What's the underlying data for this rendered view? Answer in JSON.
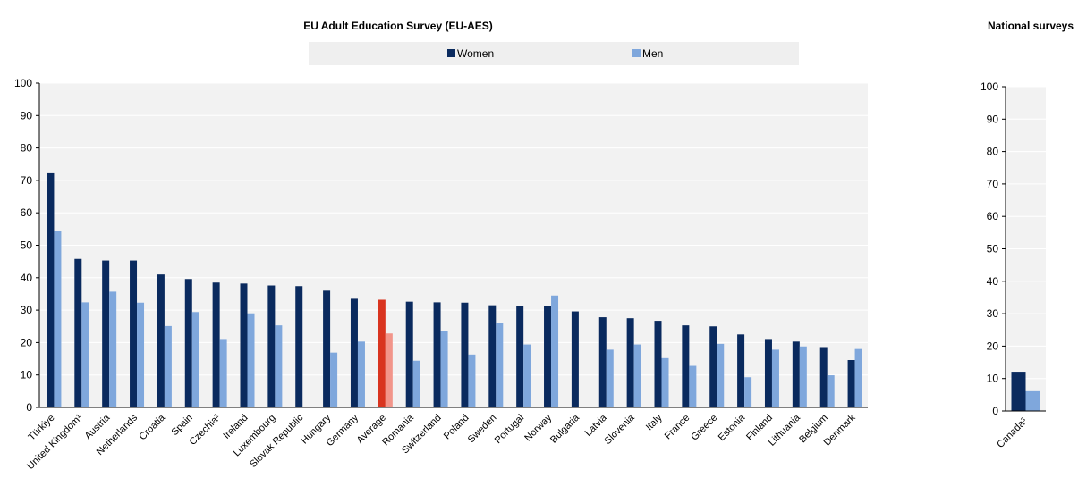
{
  "colors": {
    "women": "#0a2a5e",
    "men": "#7fa7dc",
    "avg_women": "#d9341f",
    "avg_men": "#f2958a",
    "legend_bg": "#efefef",
    "plot_bg": "#f2f2f2",
    "grid": "#ffffff",
    "axis": "#000000"
  },
  "chart_data": [
    {
      "type": "bar",
      "title": "EU Adult Education Survey (EU-AES)",
      "legend": [
        "Women",
        "Men"
      ],
      "legend_position": "top",
      "ylim": [
        0,
        100
      ],
      "yticks": [
        0,
        10,
        20,
        30,
        40,
        50,
        60,
        70,
        80,
        90,
        100
      ],
      "grid": true,
      "highlight_category": "Average",
      "categories": [
        "Türkiye",
        "United Kingdom¹",
        "Austria",
        "Netherlands",
        "Croatia",
        "Spain",
        "Czechia²",
        "Ireland",
        "Luxembourg",
        "Slovak Republic",
        "Hungary",
        "Germany",
        "Average",
        "Romania",
        "Switzerland",
        "Poland",
        "Sweden",
        "Portugal",
        "Norway",
        "Bulgaria",
        "Latvia",
        "Slovenia",
        "Italy",
        "France",
        "Greece",
        "Estonia",
        "Finland",
        "Lithuania",
        "Belgium",
        "Denmark"
      ],
      "series": [
        {
          "name": "Women",
          "values": [
            72.2,
            45.8,
            45.3,
            45.3,
            41.0,
            39.6,
            38.5,
            38.2,
            37.6,
            37.4,
            36.0,
            33.5,
            33.2,
            32.6,
            32.4,
            32.3,
            31.5,
            31.2,
            31.2,
            29.6,
            27.8,
            27.5,
            26.7,
            25.3,
            25.0,
            22.5,
            21.1,
            20.3,
            18.6,
            14.6
          ]
        },
        {
          "name": "Men",
          "values": [
            54.5,
            32.4,
            35.7,
            32.3,
            25.1,
            29.4,
            21.1,
            29.0,
            25.3,
            null,
            16.9,
            20.3,
            22.8,
            14.4,
            23.6,
            16.3,
            26.1,
            19.4,
            34.5,
            null,
            17.8,
            19.4,
            15.2,
            12.8,
            19.6,
            9.3,
            17.8,
            18.8,
            9.9,
            18.0
          ]
        }
      ]
    },
    {
      "type": "bar",
      "title": "National surveys",
      "ylim": [
        0,
        100
      ],
      "yticks": [
        0,
        10,
        20,
        30,
        40,
        50,
        60,
        70,
        80,
        90,
        100
      ],
      "grid": true,
      "categories": [
        "Canada³"
      ],
      "series": [
        {
          "name": "Women",
          "values": [
            12.1
          ]
        },
        {
          "name": "Men",
          "values": [
            6.1
          ]
        }
      ]
    }
  ]
}
